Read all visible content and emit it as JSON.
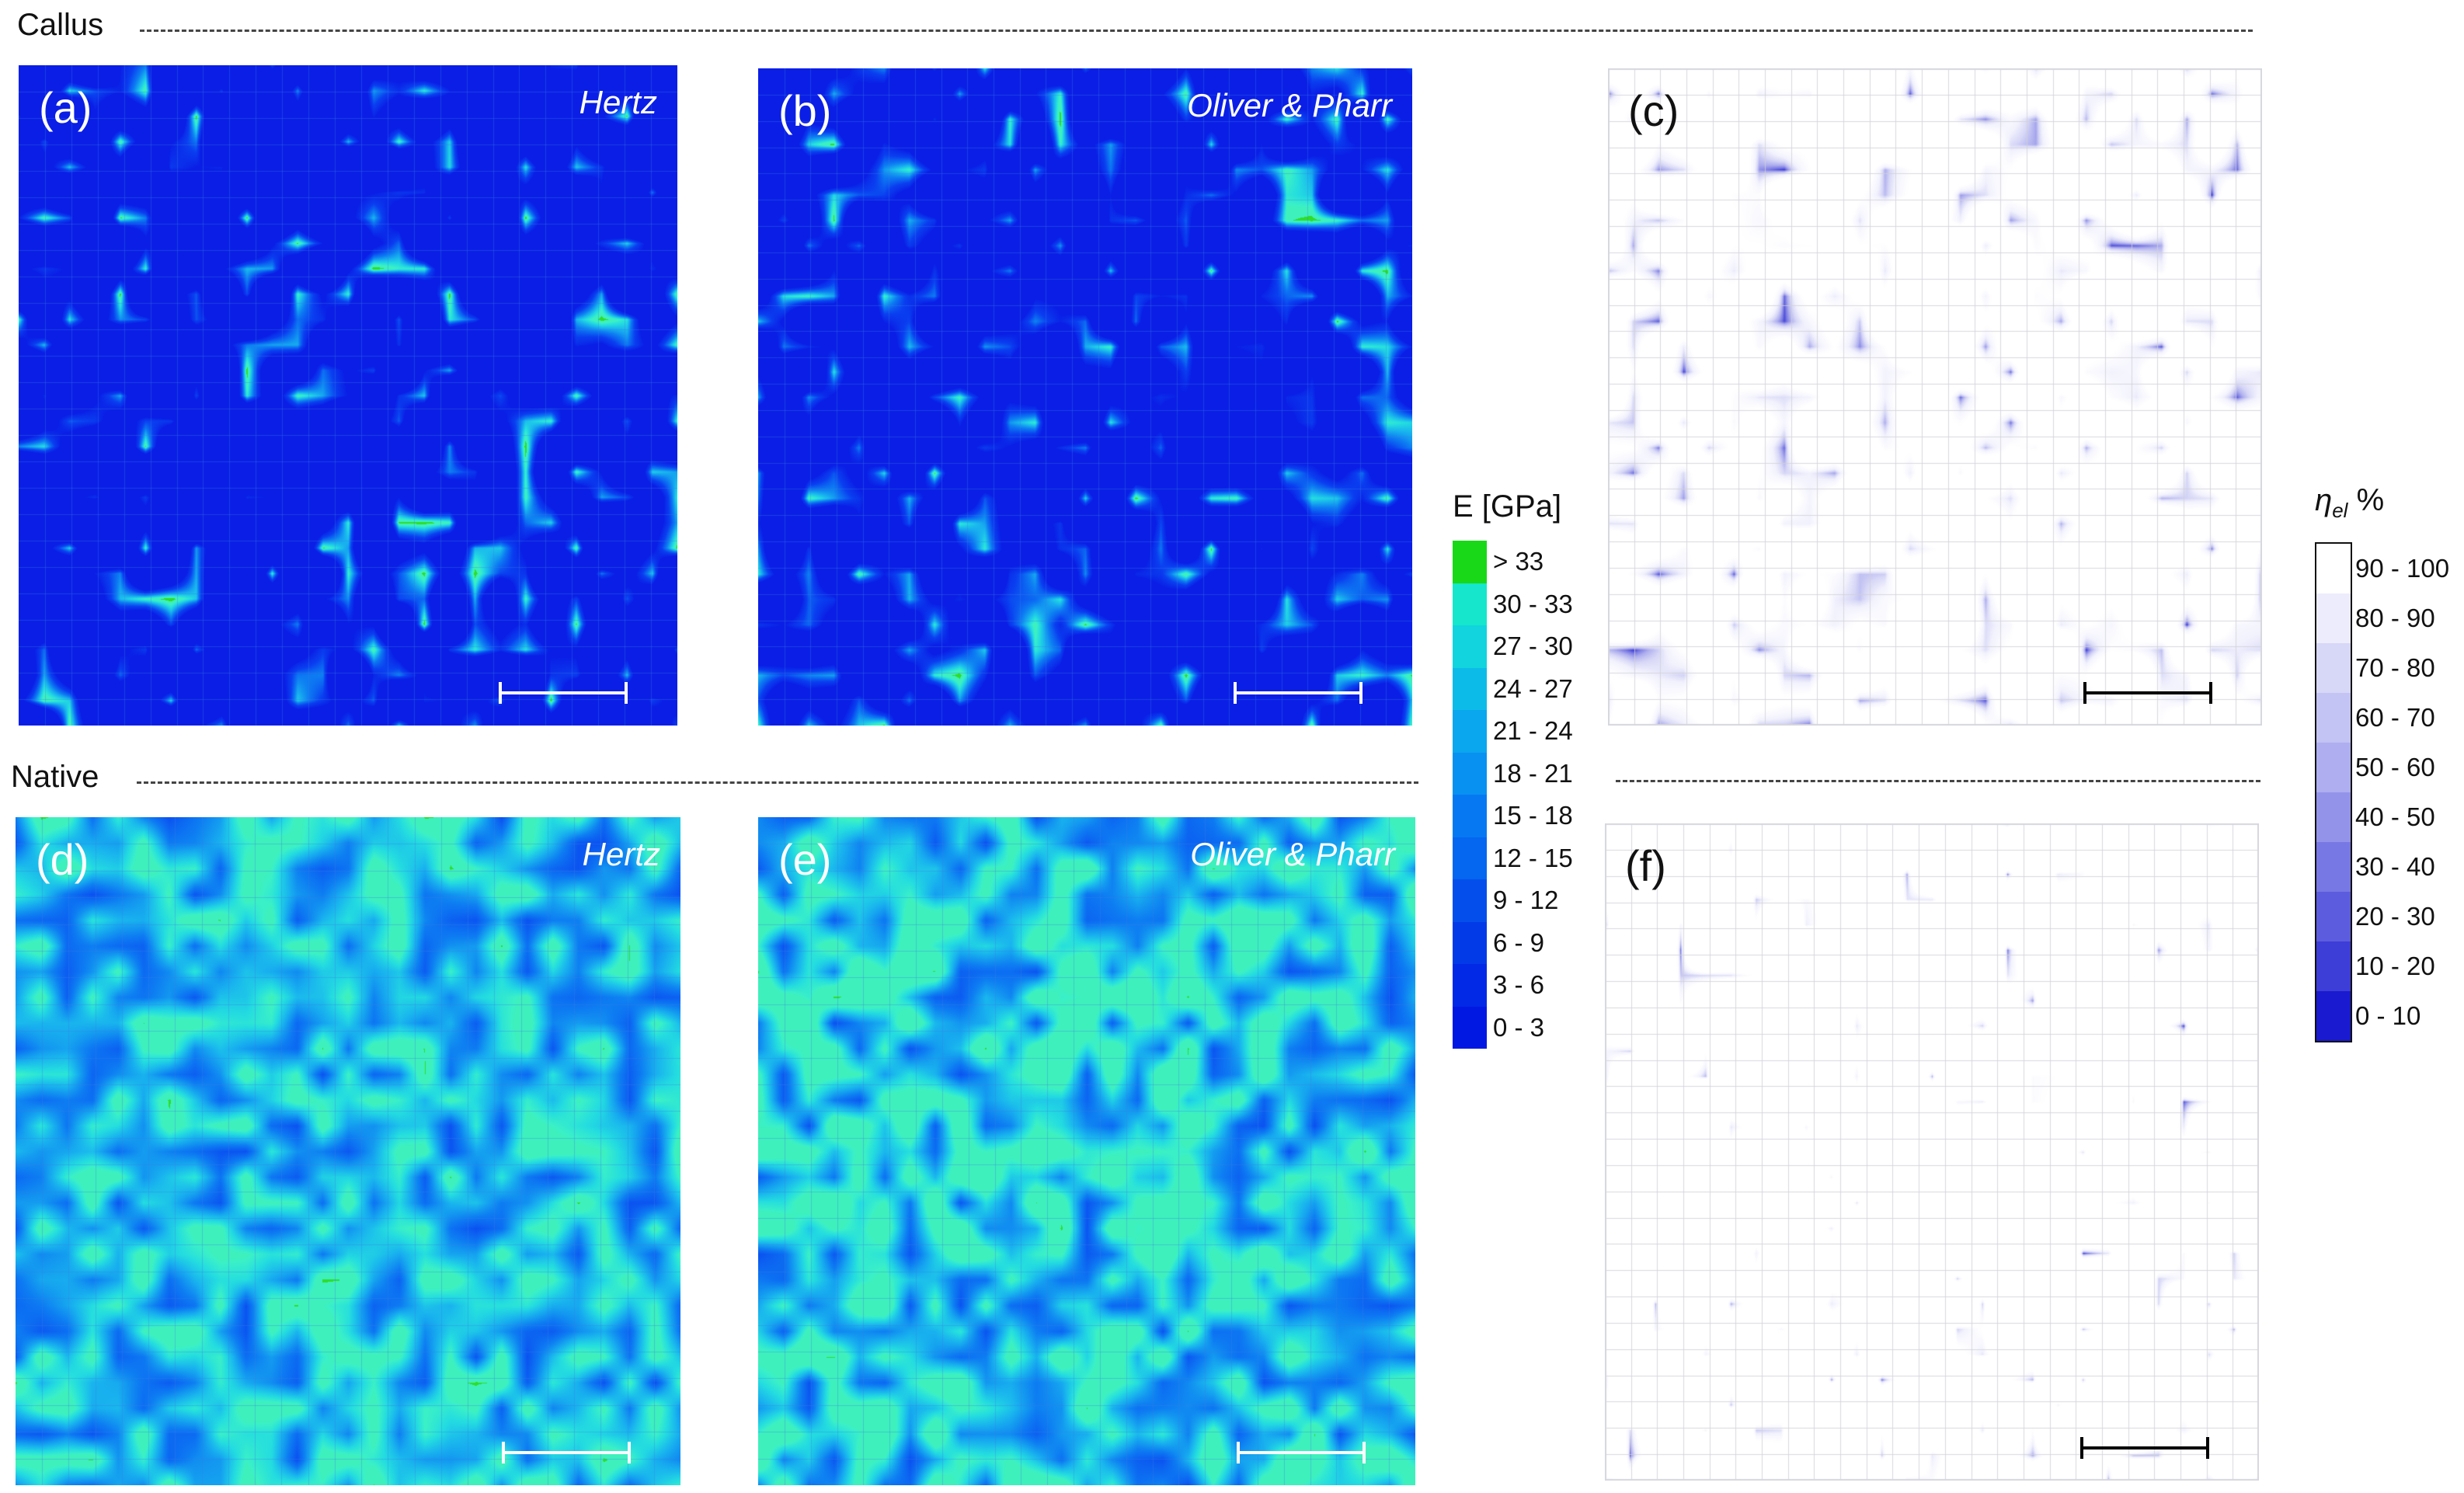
{
  "sections": {
    "callus": "Callus",
    "native": "Native"
  },
  "panels": [
    {
      "letter": "(a)",
      "method": "Hertz",
      "scheme": "modulus",
      "seed": 11,
      "green_level": 0.16
    },
    {
      "letter": "(b)",
      "method": "Oliver & Pharr",
      "scheme": "modulus",
      "seed": 23,
      "green_level": 0.24
    },
    {
      "letter": "(c)",
      "method": "",
      "scheme": "eta",
      "seed": 37,
      "blue_level": 0.34
    },
    {
      "letter": "(d)",
      "method": "Hertz",
      "scheme": "modulus",
      "seed": 41,
      "green_level": 0.55
    },
    {
      "letter": "(e)",
      "method": "Oliver & Pharr",
      "scheme": "modulus",
      "seed": 53,
      "green_level": 0.66
    },
    {
      "letter": "(f)",
      "method": "",
      "scheme": "eta",
      "seed": 67,
      "blue_level": 0.15
    }
  ],
  "legend_modulus": {
    "title": "E [GPa]",
    "labels": [
      "> 33",
      "30 - 33",
      "27 - 30",
      "24 - 27",
      "21 - 24",
      "18 - 21",
      "15 - 18",
      "12 - 15",
      "9 - 12",
      "6 - 9",
      "3 - 6",
      "0 - 3"
    ],
    "colors": [
      "#18d818",
      "#15e6cc",
      "#11d4df",
      "#0dbbe8",
      "#0aa6ee",
      "#0891f1",
      "#0679f2",
      "#0566f0",
      "#044fec",
      "#033ae8",
      "#0229e6",
      "#0118e2"
    ]
  },
  "legend_eta": {
    "title_symbol": "η",
    "title_subscript": "el",
    "title_unit": " %",
    "labels": [
      "90 - 100",
      "80 - 90",
      "70 - 80",
      "60 - 70",
      "50 - 60",
      "40 - 50",
      "30 - 40",
      "20 - 30",
      "10 - 20",
      "0 - 10"
    ],
    "colors": [
      "#ffffff",
      "#ececfc",
      "#d7d7f8",
      "#c3c3f4",
      "#aeaef0",
      "#9393ea",
      "#7878e4",
      "#5c5cde",
      "#3d3dd8",
      "#1a1ad0"
    ]
  },
  "colors": {
    "grid_modulus": "#3a7fe4",
    "grid_eta": "#cfcfd8",
    "scalebar_modulus": "#ffffff",
    "scalebar_eta": "#000000",
    "letter_modulus": "#ffffff",
    "letter_eta": "#111111"
  }
}
